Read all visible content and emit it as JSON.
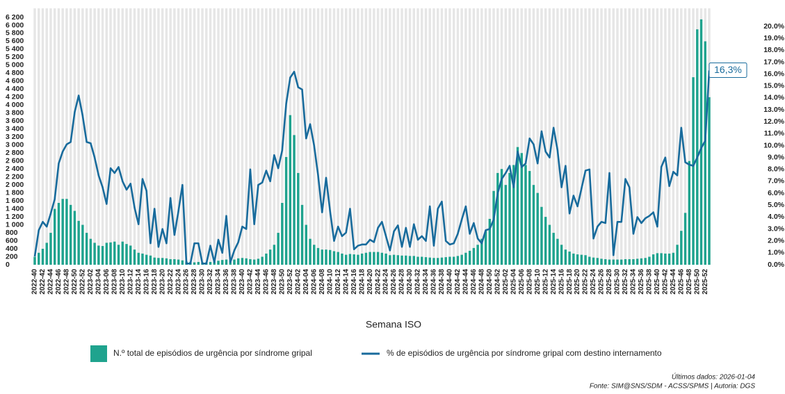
{
  "chart_data": {
    "type": "bar-line",
    "x_label": "Semana ISO",
    "footer": [
      "Últimos dados: 2026-01-04",
      "Fonte: SIM@SNS/SDM - ACSS/SPMS | Autoria: DGS"
    ],
    "categories": [
      "2022-40",
      null,
      "2022-42",
      null,
      "2022-44",
      null,
      "2022-46",
      null,
      "2022-48",
      null,
      "2022-50",
      null,
      "2022-52",
      null,
      "2023-02",
      null,
      "2023-04",
      null,
      "2023-06",
      null,
      "2023-08",
      null,
      "2023-10",
      null,
      "2023-12",
      null,
      "2023-14",
      null,
      "2023-16",
      null,
      "2023-18",
      null,
      "2023-20",
      null,
      "2023-22",
      null,
      "2023-24",
      null,
      "2023-26",
      null,
      "2023-28",
      null,
      "2023-30",
      null,
      "2023-32",
      null,
      "2023-34",
      null,
      "2023-36",
      null,
      "2023-38",
      null,
      "2023-40",
      null,
      "2023-42",
      null,
      "2023-44",
      null,
      "2023-46",
      null,
      "2023-48",
      null,
      "2023-50",
      null,
      "2023-52",
      null,
      "2024-02",
      null,
      "2024-04",
      null,
      "2024-06",
      null,
      "2024-08",
      null,
      "2024-10",
      null,
      "2024-12",
      null,
      "2024-14",
      null,
      "2024-16",
      null,
      "2024-18",
      null,
      "2024-20",
      null,
      "2024-22",
      null,
      "2024-24",
      null,
      "2024-26",
      null,
      "2024-28",
      null,
      "2024-30",
      null,
      "2024-32",
      null,
      "2024-34",
      null,
      "2024-36",
      null,
      "2024-38",
      null,
      "2024-40",
      null,
      "2024-42",
      null,
      "2024-44",
      null,
      "2024-46",
      null,
      "2024-48",
      null,
      "2024-50",
      null,
      "2024-52",
      null,
      "2025-02",
      null,
      "2025-04",
      null,
      "2025-06",
      null,
      "2025-08",
      null,
      "2025-10",
      null,
      "2025-12",
      null,
      "2025-14",
      null,
      "2025-16",
      null,
      "2025-18",
      null,
      "2025-20",
      null,
      "2025-22",
      null,
      "2025-24",
      null,
      "2025-26",
      null,
      "2025-28",
      null,
      "2025-30",
      null,
      "2025-32",
      null,
      "2025-34",
      null,
      "2025-36",
      null,
      "2025-38",
      null,
      "2025-40",
      null,
      "2025-42",
      null,
      "2025-44",
      null,
      "2025-46",
      null,
      "2025-48",
      null,
      "2025-50",
      null,
      "2025-52",
      null
    ],
    "series": [
      {
        "name": "N.º total de episódios de urgência por síndrome gripal",
        "color": "#1fa38e",
        "axis": "y",
        "values": [
          200,
          300,
          400,
          550,
          800,
          1400,
          1550,
          1650,
          1650,
          1500,
          1350,
          1100,
          1000,
          800,
          650,
          550,
          480,
          470,
          550,
          560,
          580,
          500,
          580,
          520,
          480,
          380,
          300,
          280,
          250,
          230,
          180,
          170,
          170,
          160,
          140,
          140,
          130,
          110,
          80,
          70,
          60,
          70,
          60,
          60,
          70,
          80,
          100,
          120,
          130,
          110,
          130,
          160,
          170,
          160,
          140,
          130,
          150,
          200,
          280,
          380,
          500,
          800,
          1550,
          2700,
          3750,
          3250,
          2300,
          1500,
          1000,
          650,
          500,
          420,
          380,
          380,
          370,
          340,
          320,
          280,
          250,
          270,
          260,
          250,
          280,
          300,
          320,
          320,
          320,
          300,
          280,
          240,
          250,
          240,
          230,
          230,
          220,
          220,
          200,
          200,
          190,
          180,
          170,
          170,
          180,
          190,
          200,
          200,
          220,
          250,
          300,
          350,
          420,
          500,
          650,
          850,
          1150,
          1850,
          2300,
          2400,
          2000,
          2300,
          2500,
          2950,
          2800,
          2500,
          2350,
          2000,
          1800,
          1450,
          1200,
          1000,
          800,
          650,
          500,
          380,
          330,
          280,
          260,
          250,
          240,
          200,
          180,
          170,
          150,
          140,
          130,
          130,
          130,
          130,
          140,
          140,
          140,
          150,
          160,
          170,
          200,
          260,
          290,
          290,
          280,
          280,
          300,
          500,
          850,
          1300,
          2600,
          4700,
          5900,
          6150,
          5600,
          4200
        ]
      },
      {
        "name": "% de episódios de urgência por síndrome gripal com destino internamento",
        "color": "#186b9c",
        "axis": "y2",
        "values": [
          0.7,
          2.9,
          3.6,
          3.2,
          4.3,
          5.5,
          8.5,
          9.5,
          10.1,
          10.3,
          12.8,
          14.2,
          12.5,
          10.3,
          10.2,
          9.0,
          7.5,
          6.5,
          5.1,
          8.1,
          7.7,
          8.2,
          7.0,
          6.3,
          6.8,
          4.8,
          3.4,
          7.2,
          6.2,
          1.8,
          4.7,
          1.5,
          3.0,
          1.8,
          5.6,
          2.5,
          4.5,
          6.7,
          0.1,
          0.1,
          1.8,
          1.8,
          0.1,
          0.1,
          1.6,
          0.2,
          2.1,
          1.0,
          4.1,
          0.2,
          1.2,
          1.9,
          3.2,
          3.0,
          8.0,
          3.4,
          6.7,
          6.9,
          7.9,
          7.0,
          9.2,
          8.1,
          9.6,
          13.5,
          15.7,
          16.2,
          14.9,
          14.7,
          10.6,
          11.8,
          10.0,
          7.5,
          4.4,
          7.3,
          4.5,
          2.0,
          3.2,
          2.4,
          2.7,
          4.7,
          1.3,
          1.6,
          1.7,
          1.7,
          2.1,
          1.9,
          3.1,
          3.6,
          2.4,
          1.2,
          2.8,
          3.3,
          1.5,
          3.1,
          1.5,
          3.4,
          2.1,
          2.4,
          2.0,
          4.9,
          1.6,
          4.7,
          5.3,
          2.0,
          1.7,
          1.8,
          2.6,
          3.8,
          4.9,
          2.6,
          3.5,
          2.2,
          1.8,
          2.9,
          3.0,
          3.8,
          6.0,
          7.2,
          7.7,
          8.3,
          6.5,
          9.5,
          8.2,
          8.5,
          10.6,
          10.1,
          8.5,
          11.2,
          9.5,
          9.0,
          11.5,
          9.6,
          6.5,
          8.3,
          4.3,
          5.8,
          4.9,
          6.4,
          7.9,
          8.0,
          2.2,
          3.2,
          3.6,
          3.5,
          7.7,
          0.8,
          3.6,
          3.6,
          7.2,
          6.5,
          2.6,
          4.0,
          3.5,
          3.9,
          4.1,
          4.4,
          3.2,
          8.2,
          9.0,
          6.6,
          7.8,
          7.5,
          11.5,
          8.6,
          8.4,
          8.3,
          9.0,
          9.8,
          10.4,
          16.3
        ],
        "value_labels": [
          null,
          null,
          null,
          null,
          null,
          null,
          null,
          null,
          null,
          null,
          null,
          null,
          null,
          null,
          null,
          null,
          null,
          null,
          null,
          null,
          null,
          null,
          null,
          null,
          null,
          null,
          null,
          null,
          null,
          null,
          null,
          null,
          null,
          null,
          null,
          null,
          null,
          null,
          null,
          null,
          null,
          null,
          null,
          null,
          null,
          null,
          null,
          null,
          null,
          null,
          null,
          null,
          null,
          null,
          null,
          null,
          null,
          null,
          null,
          null,
          null,
          null,
          null,
          null,
          null,
          null,
          null,
          null,
          null,
          null,
          null,
          null,
          null,
          null,
          null,
          null,
          null,
          null,
          null,
          null,
          null,
          null,
          null,
          null,
          null,
          null,
          null,
          null,
          null,
          null,
          null,
          null,
          null,
          null,
          null,
          null,
          null,
          null,
          null,
          null,
          null,
          null,
          null,
          null,
          null,
          null,
          null,
          null,
          null,
          null,
          null,
          null,
          null,
          null,
          null,
          null,
          null,
          null,
          null,
          null,
          null,
          null,
          null,
          null,
          null,
          null,
          null,
          null,
          null,
          null,
          null,
          null,
          null,
          null,
          null,
          null,
          null,
          null,
          null,
          null,
          null,
          null,
          null,
          null,
          null,
          null,
          null,
          null,
          null,
          null,
          null,
          null,
          null,
          null,
          null,
          null,
          null,
          null,
          null,
          null,
          null,
          null,
          null,
          null,
          null,
          null,
          null,
          null,
          null,
          "16,3%"
        ]
      }
    ],
    "ylim": [
      0,
      6200
    ],
    "yticks": [
      0,
      {
        "value": 200,
        "label": "200"
      },
      400,
      600,
      800,
      {
        "value": 1000,
        "label": "1 000"
      },
      {
        "value": 1200,
        "label": "1 200"
      },
      {
        "value": 1400,
        "label": "1 400"
      },
      {
        "value": 1600,
        "label": "1 600"
      },
      {
        "value": 1800,
        "label": "1 800"
      },
      {
        "value": 2000,
        "label": "2 000"
      },
      {
        "value": 2200,
        "label": "2 200"
      },
      {
        "value": 2400,
        "label": "2 400"
      },
      {
        "value": 2600,
        "label": "2 600"
      },
      {
        "value": 2800,
        "label": "2 800"
      },
      {
        "value": 3000,
        "label": "3 000"
      },
      {
        "value": 3200,
        "label": "3 200"
      },
      {
        "value": 3400,
        "label": "3 400"
      },
      {
        "value": 3600,
        "label": "3 600"
      },
      {
        "value": 3800,
        "label": "3 800"
      },
      {
        "value": 4000,
        "label": "4 000"
      },
      {
        "value": 4200,
        "label": "4 200"
      },
      {
        "value": 4400,
        "label": "4 400"
      },
      {
        "value": 4600,
        "label": "4 600"
      },
      {
        "value": 4800,
        "label": "4 800"
      },
      {
        "value": 5000,
        "label": "5 000"
      },
      {
        "value": 5200,
        "label": "5 200"
      },
      {
        "value": 5400,
        "label": "5 400"
      },
      {
        "value": 5600,
        "label": "5 600"
      },
      {
        "value": 5800,
        "label": "5 800"
      },
      {
        "value": 6000,
        "label": "6 000"
      },
      {
        "value": 6200,
        "label": "6 200"
      }
    ],
    "y2lim": [
      0,
      20.76
    ],
    "y2ticks": [
      {
        "value": 0,
        "label": "0.0%"
      },
      {
        "value": 1,
        "label": "1.0%"
      },
      {
        "value": 2,
        "label": "2.0%"
      },
      {
        "value": 3,
        "label": "3.0%"
      },
      {
        "value": 4,
        "label": "4.0%"
      },
      {
        "value": 5,
        "label": "5.0%"
      },
      {
        "value": 6,
        "label": "6.0%"
      },
      {
        "value": 7,
        "label": "7.0%"
      },
      {
        "value": 8,
        "label": "8.0%"
      },
      {
        "value": 9,
        "label": "9.0%"
      },
      {
        "value": 10,
        "label": "10.0%"
      },
      {
        "value": 11,
        "label": "11.0%"
      },
      {
        "value": 12,
        "label": "12.0%"
      },
      {
        "value": 13,
        "label": "13.0%"
      },
      {
        "value": 14,
        "label": "14.0%"
      },
      {
        "value": 15,
        "label": "15.0%"
      },
      {
        "value": 16,
        "label": "16.0%"
      },
      {
        "value": 17,
        "label": "17.0%"
      },
      {
        "value": 18,
        "label": "18.0%"
      },
      {
        "value": 19,
        "label": "19.0%"
      },
      {
        "value": 20,
        "label": "20.0%"
      }
    ],
    "grid": false
  }
}
